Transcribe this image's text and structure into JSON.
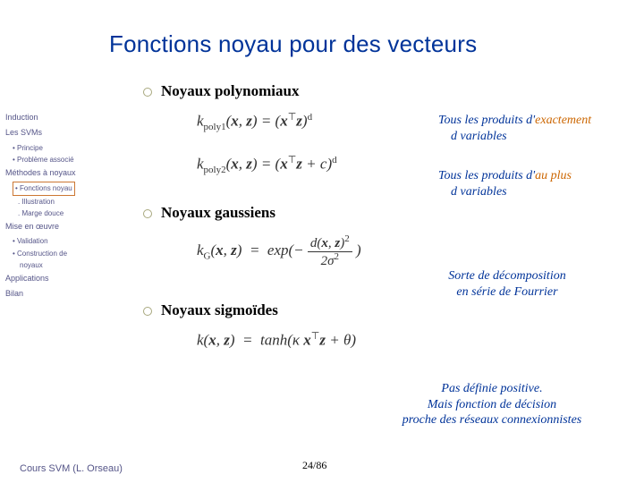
{
  "title": "Fonctions noyau pour des vecteurs",
  "sidebar": {
    "items": [
      {
        "label": "Induction",
        "cls": "item"
      },
      {
        "label": "Les SVMs",
        "cls": "item"
      },
      {
        "label": "• Principe",
        "cls": "sub"
      },
      {
        "label": "• Problème associé",
        "cls": "sub"
      },
      {
        "label": "Méthodes à noyaux",
        "cls": "item"
      },
      {
        "label": "• Fonctions noyau",
        "cls": "sub highlight"
      },
      {
        "label": ". Illustration",
        "cls": "subsub"
      },
      {
        "label": ". Marge douce",
        "cls": "subsub"
      },
      {
        "label": "Mise en œuvre",
        "cls": "item"
      },
      {
        "label": "• Validation",
        "cls": "sub"
      },
      {
        "label": "• Construction de",
        "cls": "sub"
      },
      {
        "label": "noyaux",
        "cls": "subsub",
        "style": "margin-left:16px"
      },
      {
        "label": "Applications",
        "cls": "item"
      },
      {
        "label": "Bilan",
        "cls": "item"
      }
    ]
  },
  "sections": {
    "poly": "Noyaux polynomiaux",
    "gauss": "Noyaux gaussiens",
    "sigm": "Noyaux sigmoïdes"
  },
  "annotations": {
    "exact1": "Tous les produits d'",
    "exact_em": "exactement",
    "exact2": "d variables",
    "auplus1": "Tous les produits d'",
    "auplus_em": "au plus",
    "auplus2": "d variables",
    "fourier1": "Sorte de décomposition",
    "fourier2": "en série de Fourrier",
    "sig1": "Pas définie positive.",
    "sig2": "Mais fonction de décision",
    "sig3": "proche des réseaux connexionnistes"
  },
  "footer": {
    "course": "Cours SVM  (L. Orseau)",
    "page": "24/86"
  }
}
